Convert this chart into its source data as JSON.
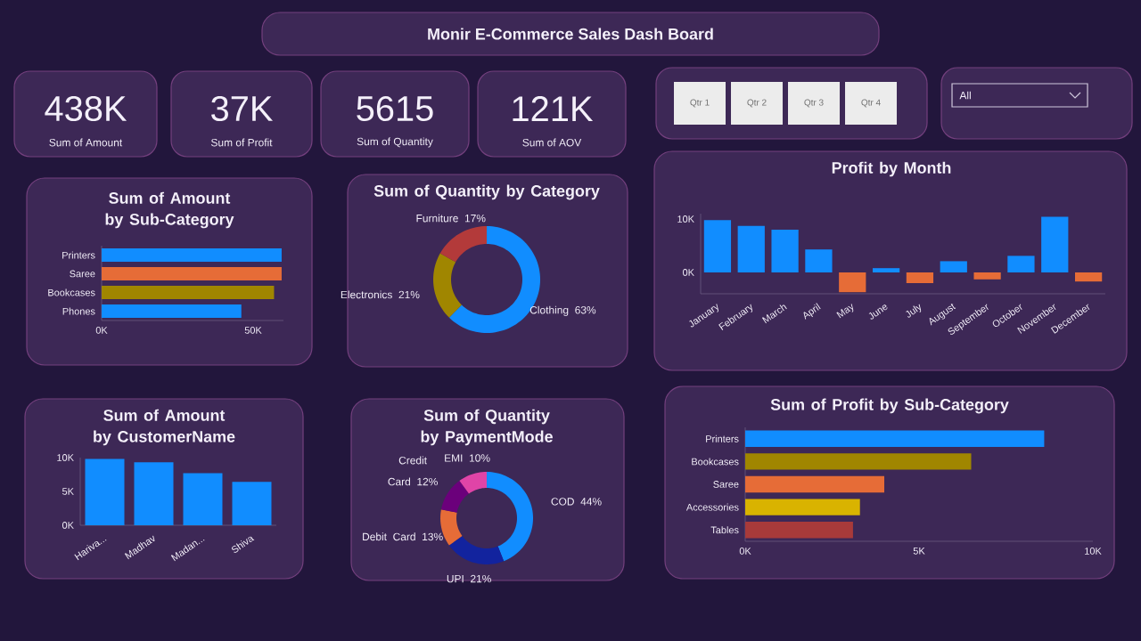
{
  "chart_data": [
    {
      "type": "other",
      "title": "Monir E-Commerce  Sales Dash Board",
      "annotations": [
        "438K",
        "Sum of Amount",
        "37K",
        "Sum of Profit",
        "5615",
        "Sum of Quantity",
        "121K",
        "Sum of AOV",
        "Qtr 1",
        "Qtr 2",
        "Qtr 3",
        "Qtr 4",
        "All"
      ]
    },
    {
      "type": "bar",
      "orientation": "horizontal",
      "title": "Sum of Amount by Sub-Category",
      "categories": [
        "Printers",
        "Saree",
        "Bookcases",
        "Phones"
      ],
      "values": [
        59400,
        59400,
        56900,
        46100
      ],
      "colors": [
        "#118dff",
        "#e66c37",
        "#a08600",
        "#118dff"
      ],
      "xlim": [
        0,
        60000
      ],
      "xticks": [
        {
          "value": 0,
          "label": "0K"
        },
        {
          "value": 50000,
          "label": "50K"
        }
      ]
    },
    {
      "type": "donut",
      "title": "Sum of Quantity by Category",
      "categories": [
        "Clothing",
        "Electronics",
        "Furniture"
      ],
      "values": [
        63,
        21,
        17
      ],
      "value_labels": [
        "63%",
        "21%",
        "17%"
      ],
      "colors": [
        "#118dff",
        "#a08600",
        "#b33a3a"
      ]
    },
    {
      "type": "bar",
      "title": "Profit by Month",
      "categories": [
        "January",
        "February",
        "March",
        "April",
        "May",
        "June",
        "July",
        "August",
        "September",
        "October",
        "November",
        "December"
      ],
      "values": [
        9800,
        8700,
        8000,
        4300,
        -3700,
        800,
        -2000,
        2100,
        -1300,
        3100,
        10400,
        -1700
      ],
      "colors": [
        "#118dff",
        "#118dff",
        "#118dff",
        "#118dff",
        "#e66c37",
        "#118dff",
        "#e66c37",
        "#118dff",
        "#e66c37",
        "#118dff",
        "#118dff",
        "#e66c37"
      ],
      "ylim": [
        -4000,
        11000
      ],
      "yticks": [
        {
          "value": 0,
          "label": "0K"
        },
        {
          "value": 10000,
          "label": "10K"
        }
      ]
    },
    {
      "type": "bar",
      "title": "Sum of Amount by CustomerName",
      "categories": [
        "Hariva...",
        "Madhav",
        "Madan...",
        "Shiva"
      ],
      "values": [
        9800,
        9300,
        7700,
        6400
      ],
      "color": "#118dff",
      "ylim": [
        0,
        10000
      ],
      "yticks": [
        {
          "value": 0,
          "label": "0K"
        },
        {
          "value": 5000,
          "label": "5K"
        },
        {
          "value": 10000,
          "label": "10K"
        }
      ]
    },
    {
      "type": "donut",
      "title": "Sum of Quantity by PaymentMode",
      "categories": [
        "COD",
        "UPI",
        "Debit Card",
        "Credit Card",
        "EMI"
      ],
      "values": [
        44,
        21,
        13,
        12,
        10
      ],
      "value_labels": [
        "44%",
        "21%",
        "13%",
        "12%",
        "10%"
      ],
      "colors": [
        "#118dff",
        "#12239e",
        "#e66c37",
        "#6b007b",
        "#e044a7"
      ]
    },
    {
      "type": "bar",
      "orientation": "horizontal",
      "title": "Sum of Profit by Sub-Category",
      "categories": [
        "Printers",
        "Bookcases",
        "Saree",
        "Accessories",
        "Tables"
      ],
      "values": [
        8600,
        6500,
        4000,
        3300,
        3100
      ],
      "colors": [
        "#118dff",
        "#a08600",
        "#e66c37",
        "#d9b300",
        "#a83a3a"
      ],
      "xlim": [
        0,
        10000
      ],
      "xticks": [
        {
          "value": 0,
          "label": "0K"
        },
        {
          "value": 5000,
          "label": "5K"
        },
        {
          "value": 10000,
          "label": "10K"
        }
      ]
    }
  ]
}
